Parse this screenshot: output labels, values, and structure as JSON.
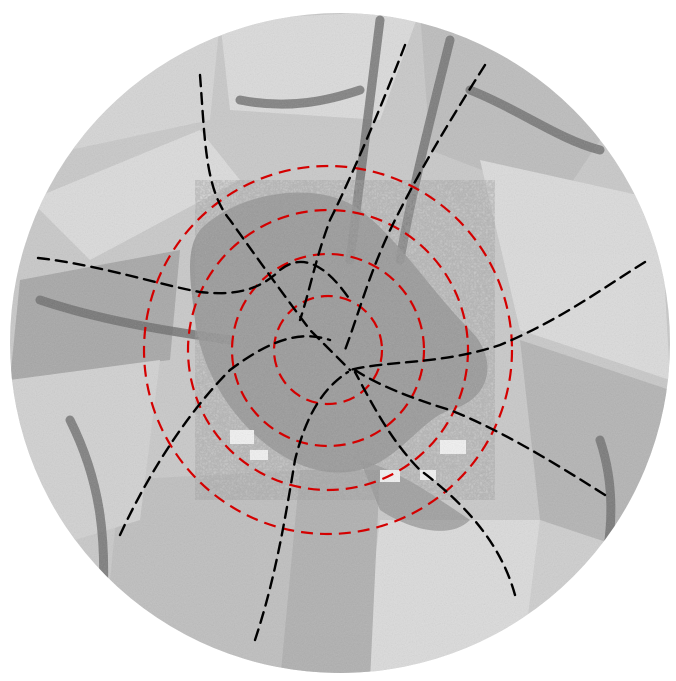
{
  "map": {
    "style": "aerial-photograph-grayscale",
    "shape": "circle",
    "settlement": "village-center",
    "colors": {
      "background": "#ffffff",
      "terrain_base": "#c9c9c9",
      "field_light": "#dcdcdc",
      "field_dark": "#a7a7a7",
      "settlement": "#8e8e8e",
      "vegetation": "#6a6a6a",
      "ring_stroke": "#d40000",
      "road_stroke": "#000000"
    },
    "rings": {
      "count": 4,
      "style": "dashed"
    },
    "radial_roads": {
      "count": 8,
      "style": "dashed"
    }
  }
}
